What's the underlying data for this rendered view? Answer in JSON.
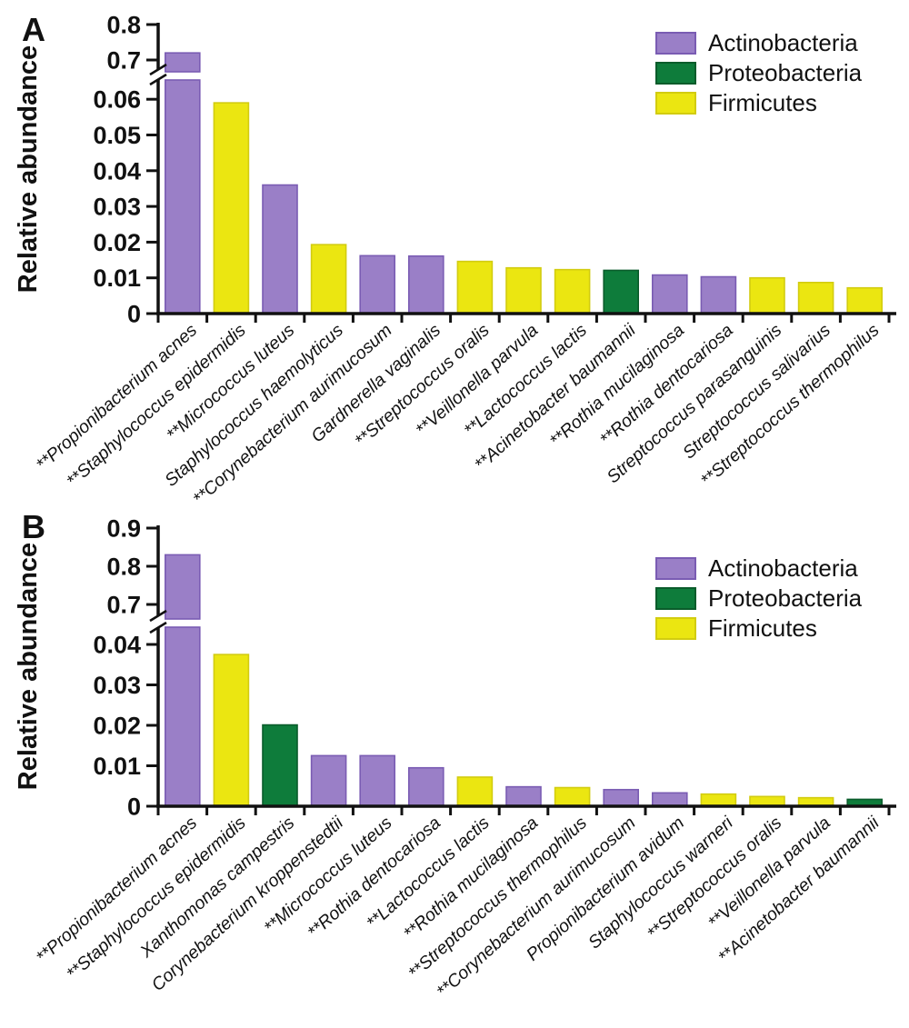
{
  "figure": {
    "description": "Two-panel bar chart of bacterial relative abundance with broken y-axes",
    "panel_labels": [
      "A",
      "B"
    ]
  },
  "palette": {
    "Actinobacteria": {
      "fill": "#9a7fc7",
      "stroke": "#7a5cb3"
    },
    "Proteobacteria": {
      "fill": "#0e7c3b",
      "stroke": "#0a5c2b"
    },
    "Firmicutes": {
      "fill": "#ebe611",
      "stroke": "#d2cc10"
    }
  },
  "chart_data": [
    {
      "type": "bar",
      "panel": "A",
      "ylabel": "Relative abundance",
      "y_axis_break": true,
      "lower_axis_range": [
        0,
        0.065
      ],
      "upper_axis_range": [
        0.68,
        0.81
      ],
      "grid": false,
      "legend_position": "top-right",
      "lower_ticks": [
        {
          "v": 0,
          "label": "0"
        },
        {
          "v": 0.01,
          "label": "0.01"
        },
        {
          "v": 0.02,
          "label": "0.02"
        },
        {
          "v": 0.03,
          "label": "0.03"
        },
        {
          "v": 0.04,
          "label": "0.04"
        },
        {
          "v": 0.05,
          "label": "0.05"
        },
        {
          "v": 0.06,
          "label": "0.06"
        }
      ],
      "upper_ticks": [
        {
          "v": 0.7,
          "label": "0.7"
        },
        {
          "v": 0.8,
          "label": "0.8"
        }
      ],
      "legend": [
        {
          "name": "Actinobacteria"
        },
        {
          "name": "Proteobacteria"
        },
        {
          "name": "Firmicutes"
        }
      ],
      "bars": [
        {
          "species": "**Propionibacterium acnes",
          "phylum": "Actinobacteria",
          "value": 0.72
        },
        {
          "species": "**Staphylococcus epidermidis",
          "phylum": "Firmicutes",
          "value": 0.059
        },
        {
          "species": "**Micrococcus luteus",
          "phylum": "Actinobacteria",
          "value": 0.036
        },
        {
          "species": "Staphylococcus haemolyticus",
          "phylum": "Firmicutes",
          "value": 0.0193
        },
        {
          "species": "**Corynebacterium aurimucosum",
          "phylum": "Actinobacteria",
          "value": 0.0162
        },
        {
          "species": "Gardnerella vaginalis",
          "phylum": "Actinobacteria",
          "value": 0.0161
        },
        {
          "species": "**Streptococcus oralis",
          "phylum": "Firmicutes",
          "value": 0.0146
        },
        {
          "species": "**Veillonella parvula",
          "phylum": "Firmicutes",
          "value": 0.0128
        },
        {
          "species": "**Lactococcus lactis",
          "phylum": "Firmicutes",
          "value": 0.0123
        },
        {
          "species": "**Acinetobacter baumannii",
          "phylum": "Proteobacteria",
          "value": 0.0121
        },
        {
          "species": "**Rothia mucilaginosa",
          "phylum": "Actinobacteria",
          "value": 0.0108
        },
        {
          "species": "**Rothia dentocariosa",
          "phylum": "Actinobacteria",
          "value": 0.0103
        },
        {
          "species": "Streptococcus parasanguinis",
          "phylum": "Firmicutes",
          "value": 0.01
        },
        {
          "species": "Streptococcus salivarius",
          "phylum": "Firmicutes",
          "value": 0.0087
        },
        {
          "species": "**Streptococcus thermophilus",
          "phylum": "Firmicutes",
          "value": 0.0072
        }
      ]
    },
    {
      "type": "bar",
      "panel": "B",
      "ylabel": "Relative abundance",
      "y_axis_break": true,
      "lower_axis_range": [
        0,
        0.044
      ],
      "upper_axis_range": [
        0.67,
        0.92
      ],
      "grid": false,
      "legend_position": "top-right",
      "lower_ticks": [
        {
          "v": 0,
          "label": "0"
        },
        {
          "v": 0.01,
          "label": "0.01"
        },
        {
          "v": 0.02,
          "label": "0.02"
        },
        {
          "v": 0.03,
          "label": "0.03"
        },
        {
          "v": 0.04,
          "label": "0.04"
        }
      ],
      "upper_ticks": [
        {
          "v": 0.7,
          "label": "0.7"
        },
        {
          "v": 0.8,
          "label": "0.8"
        },
        {
          "v": 0.9,
          "label": "0.9"
        }
      ],
      "legend": [
        {
          "name": "Actinobacteria"
        },
        {
          "name": "Proteobacteria"
        },
        {
          "name": "Firmicutes"
        }
      ],
      "bars": [
        {
          "species": "**Propionibacterium acnes",
          "phylum": "Actinobacteria",
          "value": 0.83
        },
        {
          "species": "**Staphylococcus epidermidis",
          "phylum": "Firmicutes",
          "value": 0.0375
        },
        {
          "species": "Xanthomonas campestris",
          "phylum": "Proteobacteria",
          "value": 0.0201
        },
        {
          "species": "Corynebacterium kroppenstedtii",
          "phylum": "Actinobacteria",
          "value": 0.0125
        },
        {
          "species": "**Micrococcus luteus",
          "phylum": "Actinobacteria",
          "value": 0.0125
        },
        {
          "species": "**Rothia dentocariosa",
          "phylum": "Actinobacteria",
          "value": 0.0095
        },
        {
          "species": "**Lactococcus lactis",
          "phylum": "Firmicutes",
          "value": 0.0072
        },
        {
          "species": "**Rothia mucilaginosa",
          "phylum": "Actinobacteria",
          "value": 0.0048
        },
        {
          "species": "**Streptococcus thermophilus",
          "phylum": "Firmicutes",
          "value": 0.0046
        },
        {
          "species": "**Corynebacterium aurimucosum",
          "phylum": "Actinobacteria",
          "value": 0.0041
        },
        {
          "species": "Propionibacterium avidum",
          "phylum": "Actinobacteria",
          "value": 0.0033
        },
        {
          "species": "Staphylococcus warneri",
          "phylum": "Firmicutes",
          "value": 0.003
        },
        {
          "species": "**Streptococcus oralis",
          "phylum": "Firmicutes",
          "value": 0.0024
        },
        {
          "species": "**Veillonella parvula",
          "phylum": "Firmicutes",
          "value": 0.0021
        },
        {
          "species": "**Acinetobacter baumannii",
          "phylum": "Proteobacteria",
          "value": 0.0017
        }
      ]
    }
  ]
}
